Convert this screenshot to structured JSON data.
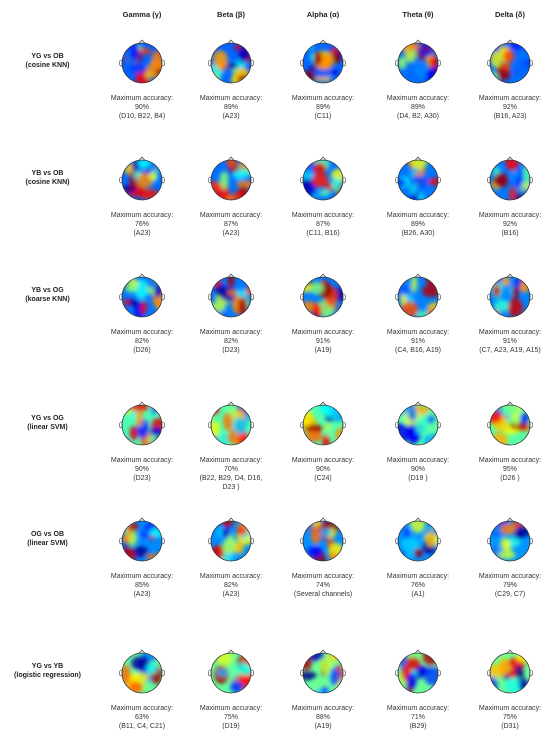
{
  "columns": [
    "Gamma (γ)",
    "Beta (β)",
    "Alpha (α)",
    "Theta (θ)",
    "Delta (δ)"
  ],
  "accuracy_label": "Maximum accuracy:",
  "rows": [
    {
      "title": "YG vs OB",
      "method": "(cosine KNN)",
      "cells": [
        {
          "pct": "90%",
          "channels": [
            "(D10, B22, B4)"
          ]
        },
        {
          "pct": "89%",
          "channels": [
            "(A23)"
          ]
        },
        {
          "pct": "89%",
          "channels": [
            "(C11)"
          ]
        },
        {
          "pct": "89%",
          "channels": [
            "(D4, B2, A30)"
          ]
        },
        {
          "pct": "92%",
          "channels": [
            "(B16, A23)"
          ]
        }
      ]
    },
    {
      "title": "YB vs OB",
      "method": "(cosine KNN)",
      "cells": [
        {
          "pct": "76%",
          "channels": [
            "(A23)"
          ]
        },
        {
          "pct": "87%",
          "channels": [
            "(A23)"
          ]
        },
        {
          "pct": "87%",
          "channels": [
            "(C11, B16)"
          ]
        },
        {
          "pct": "89%",
          "channels": [
            "(B26, A30)"
          ]
        },
        {
          "pct": "92%",
          "channels": [
            "(B16)"
          ]
        }
      ]
    },
    {
      "title": "YB vs OG",
      "method": "(koarse KNN)",
      "cells": [
        {
          "pct": "82%",
          "channels": [
            "(D26)"
          ]
        },
        {
          "pct": "82%",
          "channels": [
            "(D23)"
          ]
        },
        {
          "pct": "91%",
          "channels": [
            "(A19)"
          ]
        },
        {
          "pct": "91%",
          "channels": [
            "(C4, B16, A19)"
          ]
        },
        {
          "pct": "91%",
          "channels": [
            "(C7, A23, A19, A15)"
          ]
        }
      ]
    },
    {
      "title": "YG vs OG",
      "method": "(linear SVM)",
      "cells": [
        {
          "pct": "90%",
          "channels": [
            "(D23)"
          ]
        },
        {
          "pct": "70%",
          "channels": [
            "(B22, B29, D4, D16,",
            "D23 )"
          ]
        },
        {
          "pct": "90%",
          "channels": [
            "(C24)"
          ]
        },
        {
          "pct": "90%",
          "channels": [
            "(D19 )"
          ]
        },
        {
          "pct": "95%",
          "channels": [
            "(D26 )"
          ]
        }
      ]
    },
    {
      "title": "OG vs OB",
      "method": "(linear SVM)",
      "cells": [
        {
          "pct": "85%",
          "channels": [
            "(A23)"
          ]
        },
        {
          "pct": "82%",
          "channels": [
            "(A23)"
          ]
        },
        {
          "pct": "74%",
          "channels": [
            "(Several channels)"
          ]
        },
        {
          "pct": "76%",
          "channels": [
            "(A1)"
          ]
        },
        {
          "pct": "79%",
          "channels": [
            "(C29, C7)"
          ]
        }
      ]
    },
    {
      "title": "YG vs YB",
      "method": "(logistic regression)",
      "cells": [
        {
          "pct": "63%",
          "channels": [
            "(B11, C4, C21)"
          ]
        },
        {
          "pct": "75%",
          "channels": [
            "(D19)"
          ]
        },
        {
          "pct": "88%",
          "channels": [
            "(A19)"
          ]
        },
        {
          "pct": "71%",
          "channels": [
            "(B29)"
          ]
        },
        {
          "pct": "75%",
          "channels": [
            "(D31)"
          ]
        }
      ]
    }
  ]
}
